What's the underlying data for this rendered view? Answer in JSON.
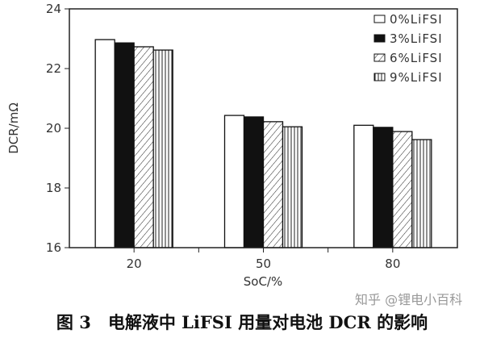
{
  "chart_data": {
    "type": "bar",
    "title": "",
    "xlabel": "SoC/%",
    "ylabel": "DCR/mΩ",
    "categories": [
      "20",
      "50",
      "80"
    ],
    "ylim": [
      16,
      24
    ],
    "yticks": [
      "16",
      "18",
      "20",
      "22",
      "24"
    ],
    "grid": false,
    "legend_position": "top-right",
    "series": [
      {
        "name": "0%LiFSI",
        "pattern": "white",
        "values": [
          22.97,
          20.43,
          20.1
        ]
      },
      {
        "name": "3%LiFSI",
        "pattern": "black",
        "values": [
          22.86,
          20.38,
          20.03
        ]
      },
      {
        "name": "6%LiFSI",
        "pattern": "diagonal-hatch",
        "values": [
          22.73,
          20.22,
          19.89
        ]
      },
      {
        "name": "9%LiFSI",
        "pattern": "vertical-lines",
        "values": [
          22.62,
          20.05,
          19.62
        ]
      }
    ]
  },
  "caption": "图 3　电解液中 LiFSI 用量对电池 DCR 的影响",
  "watermark": "知乎 @锂电小百科"
}
